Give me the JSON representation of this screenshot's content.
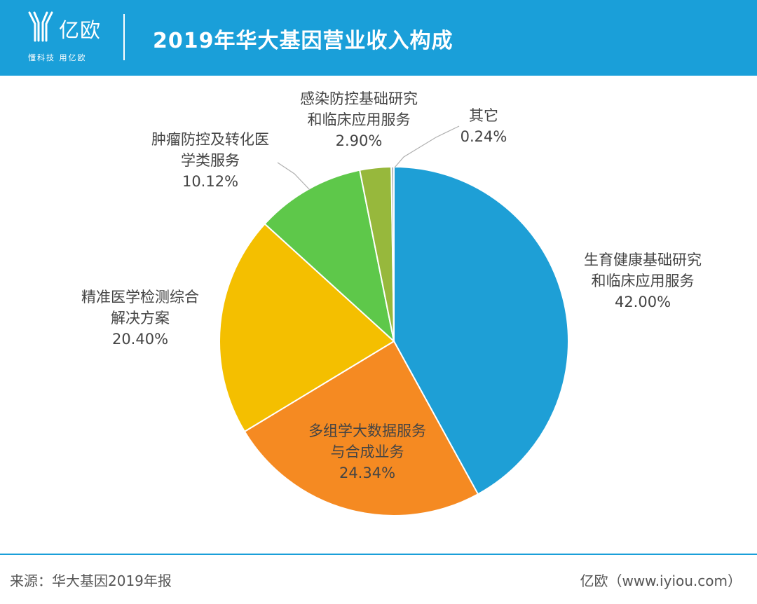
{
  "header": {
    "logo_text": "亿欧",
    "logo_slogan": "懂科技 用亿欧",
    "title": "2019年华大基因营业收入构成"
  },
  "colors": {
    "brand": "#1a9fd9",
    "slices": [
      "#1e9fd6",
      "#f58a22",
      "#f4bf00",
      "#5ec84a",
      "#97b83c",
      "#a8b0b6"
    ],
    "label_text": "#444444",
    "leader": "#b0b0b0"
  },
  "chart_data": {
    "type": "pie",
    "slices": [
      {
        "label_lines": [
          "生育健康基础研究",
          "和临床应用服务"
        ],
        "value": 42.0,
        "display": "42.00%"
      },
      {
        "label_lines": [
          "多组学大数据服务",
          "与合成业务"
        ],
        "value": 24.34,
        "display": "24.34%"
      },
      {
        "label_lines": [
          "精准医学检测综合",
          "解决方案"
        ],
        "value": 20.4,
        "display": "20.40%"
      },
      {
        "label_lines": [
          "肿瘤防控及转化医",
          "学类服务"
        ],
        "value": 10.12,
        "display": "10.12%"
      },
      {
        "label_lines": [
          "感染防控基础研究",
          "和临床应用服务"
        ],
        "value": 2.9,
        "display": "2.90%"
      },
      {
        "label_lines": [
          "其它"
        ],
        "value": 0.24,
        "display": "0.24%"
      }
    ]
  },
  "footer": {
    "source": "来源：华大基因2019年报",
    "brand": "亿欧（www.iyiou.com）"
  }
}
